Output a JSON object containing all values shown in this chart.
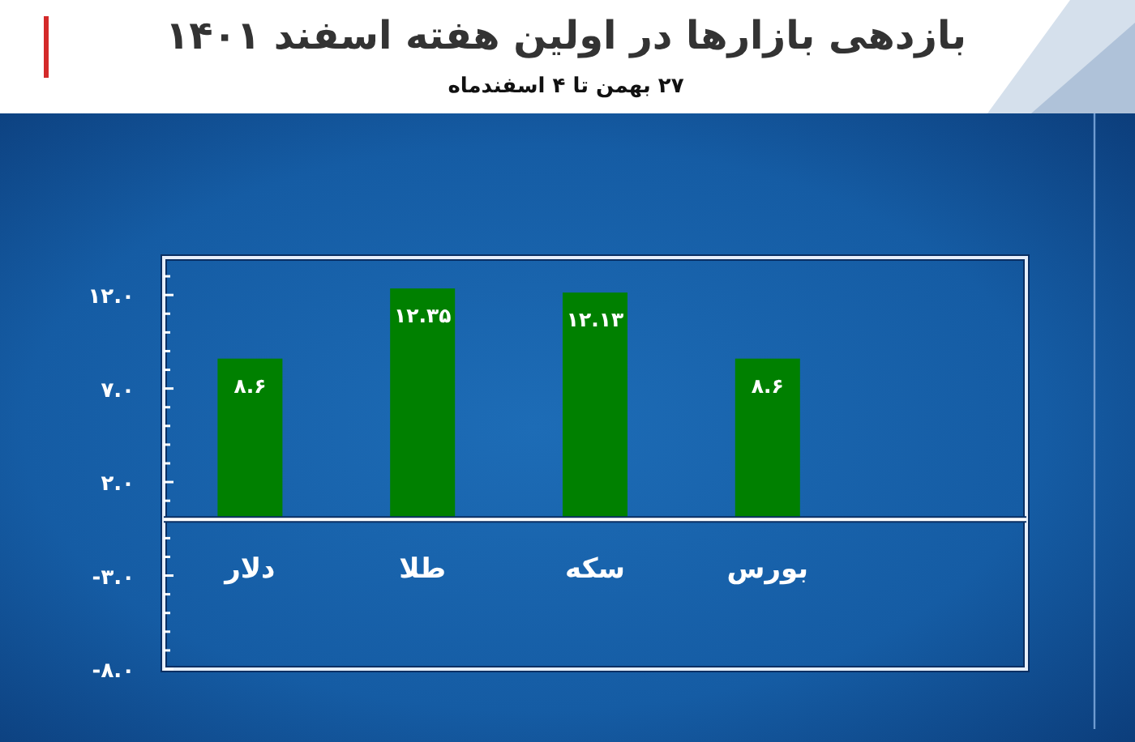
{
  "chart_data": {
    "type": "bar",
    "title": "بازدهی بازارها در اولین هفته اسفند ۱۴۰۱",
    "subtitle": "۲۷ بهمن تا ۴ اسفندماه",
    "categories": [
      "دلار",
      "طلا",
      "سکه",
      "بورس"
    ],
    "values": [
      8.6,
      12.35,
      12.13,
      8.6
    ],
    "color": "#008000",
    "value_labels": [
      "۸.۶",
      "۱۲.۳۵",
      "۱۲.۱۳",
      "۸.۶"
    ],
    "ylim": [
      -8,
      14
    ],
    "yticks": [
      {
        "value": -8,
        "label": "-۸.۰"
      },
      {
        "value": -7,
        "label": null
      },
      {
        "value": -6,
        "label": null
      },
      {
        "value": -5,
        "label": null
      },
      {
        "value": -4,
        "label": null
      },
      {
        "value": -3,
        "label": "-۳.۰"
      },
      {
        "value": -2,
        "label": null
      },
      {
        "value": -1,
        "label": null
      },
      {
        "value": 0,
        "label": null
      },
      {
        "value": 1,
        "label": null
      },
      {
        "value": 2,
        "label": "۲.۰"
      },
      {
        "value": 3,
        "label": null
      },
      {
        "value": 4,
        "label": null
      },
      {
        "value": 5,
        "label": null
      },
      {
        "value": 6,
        "label": null
      },
      {
        "value": 7,
        "label": "۷.۰"
      },
      {
        "value": 8,
        "label": null
      },
      {
        "value": 9,
        "label": null
      },
      {
        "value": 10,
        "label": null
      },
      {
        "value": 11,
        "label": null
      },
      {
        "value": 12,
        "label": "۱۲.۰"
      },
      {
        "value": 13,
        "label": null
      }
    ]
  }
}
